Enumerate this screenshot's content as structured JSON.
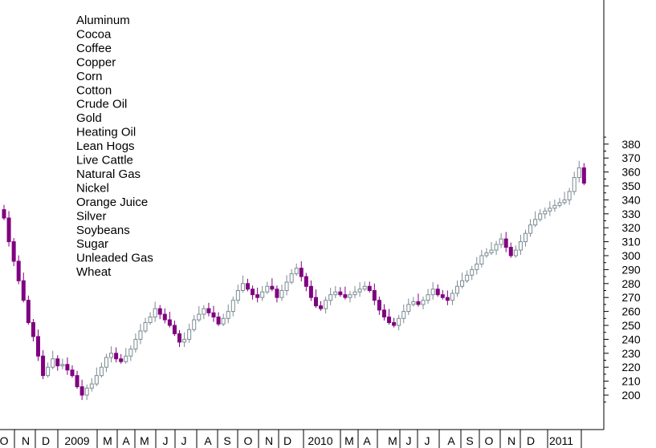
{
  "chart_data": {
    "type": "candlestick",
    "title": "",
    "xlabel": "",
    "ylabel": "",
    "ylim": [
      190,
      385
    ],
    "y_ticks": [
      200,
      210,
      220,
      230,
      240,
      250,
      260,
      270,
      280,
      290,
      300,
      310,
      320,
      330,
      340,
      350,
      360,
      370,
      380
    ],
    "x_ticks": [
      "O",
      "N",
      "D",
      "2009",
      "M",
      "A",
      "M",
      "J",
      "J",
      "A",
      "S",
      "O",
      "N",
      "D",
      "2010",
      "M",
      "A",
      "M",
      "J",
      "J",
      "A",
      "S",
      "O",
      "N",
      "D",
      "2011"
    ],
    "legend": {
      "placement": "top-left",
      "items": [
        "Aluminum",
        "Cocoa",
        "Coffee",
        "Copper",
        "Corn",
        "Cotton",
        "Crude Oil",
        "Gold",
        "Heating Oil",
        "Lean Hogs",
        "Live Cattle",
        "Natural Gas",
        "Nickel",
        "Orange Juice",
        "Silver",
        "Soybeans",
        "Sugar",
        "Unleaded Gas",
        "Wheat"
      ]
    },
    "grid": false,
    "colors": {
      "up": "#7b8b92",
      "down": "#800080",
      "axis": "#000000"
    },
    "closes": [
      327,
      310,
      296,
      282,
      268,
      252,
      242,
      228,
      214,
      220,
      226,
      221,
      222,
      218,
      214,
      206,
      200,
      205,
      208,
      214,
      220,
      227,
      230,
      226,
      224,
      228,
      233,
      240,
      246,
      252,
      256,
      262,
      258,
      254,
      250,
      244,
      238,
      240,
      247,
      254,
      258,
      262,
      259,
      256,
      251,
      255,
      260,
      268,
      275,
      280,
      276,
      272,
      270,
      274,
      278,
      276,
      270,
      275,
      281,
      287,
      291,
      285,
      278,
      270,
      264,
      262,
      268,
      272,
      274,
      272,
      270,
      272,
      274,
      276,
      278,
      275,
      268,
      261,
      256,
      252,
      250,
      255,
      260,
      265,
      267,
      265,
      268,
      272,
      276,
      272,
      270,
      268,
      273,
      278,
      282,
      286,
      290,
      294,
      300,
      302,
      304,
      308,
      312,
      306,
      300,
      304,
      310,
      316,
      322,
      326,
      330,
      332,
      334,
      336,
      338,
      340,
      346,
      356,
      363,
      352
    ]
  }
}
